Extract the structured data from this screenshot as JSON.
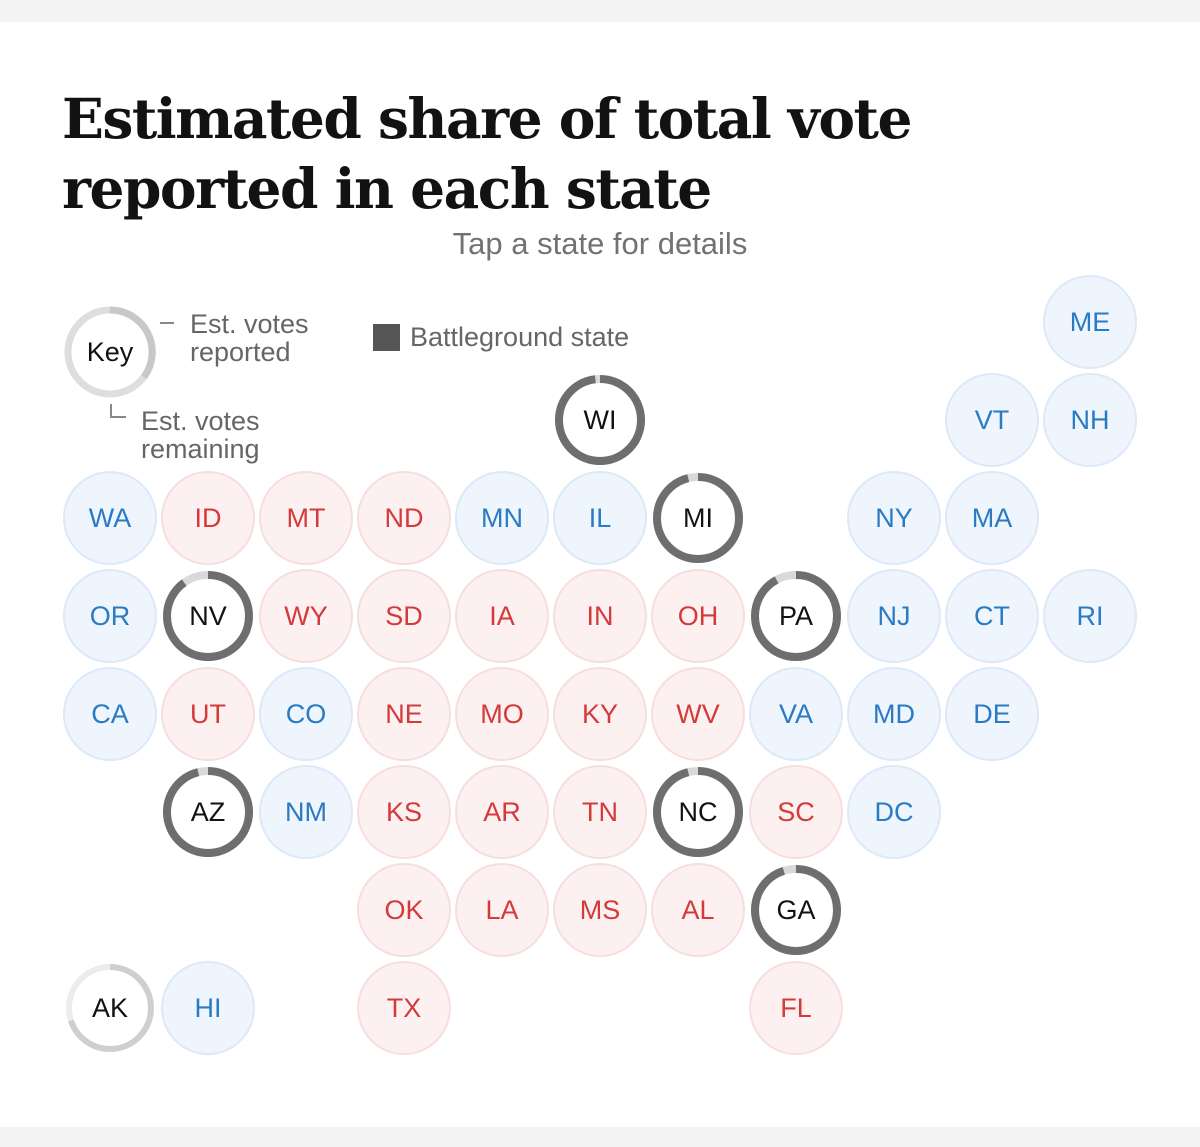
{
  "header": {
    "title": "Estimated share of total vote reported in each state",
    "subtitle": "Tap a state for details"
  },
  "legend": {
    "key_label": "Key",
    "reported_label": "Est. votes reported",
    "remaining_label": "Est. votes remaining",
    "battleground_label": "Battleground state"
  },
  "colors": {
    "dem_text": "#2a7ac4",
    "rep_text": "#d33a3a",
    "battleground_ring": "#6e6e6e",
    "remaining_ring": "#d9d9d9"
  },
  "states": [
    {
      "abbr": "ME",
      "party": "dem",
      "row": 0,
      "col": 10
    },
    {
      "abbr": "WI",
      "party": "battle",
      "row": 1,
      "col": 5,
      "reported": 0.98
    },
    {
      "abbr": "VT",
      "party": "dem",
      "row": 1,
      "col": 9
    },
    {
      "abbr": "NH",
      "party": "dem",
      "row": 1,
      "col": 10
    },
    {
      "abbr": "WA",
      "party": "dem",
      "row": 2,
      "col": 0
    },
    {
      "abbr": "ID",
      "party": "rep",
      "row": 2,
      "col": 1
    },
    {
      "abbr": "MT",
      "party": "rep",
      "row": 2,
      "col": 2
    },
    {
      "abbr": "ND",
      "party": "rep",
      "row": 2,
      "col": 3
    },
    {
      "abbr": "MN",
      "party": "dem",
      "row": 2,
      "col": 4
    },
    {
      "abbr": "IL",
      "party": "dem",
      "row": 2,
      "col": 5
    },
    {
      "abbr": "MI",
      "party": "battle",
      "row": 2,
      "col": 6,
      "reported": 0.96
    },
    {
      "abbr": "NY",
      "party": "dem",
      "row": 2,
      "col": 8
    },
    {
      "abbr": "MA",
      "party": "dem",
      "row": 2,
      "col": 9
    },
    {
      "abbr": "OR",
      "party": "dem",
      "row": 3,
      "col": 0
    },
    {
      "abbr": "NV",
      "party": "battle",
      "row": 3,
      "col": 1,
      "reported": 0.9
    },
    {
      "abbr": "WY",
      "party": "rep",
      "row": 3,
      "col": 2
    },
    {
      "abbr": "SD",
      "party": "rep",
      "row": 3,
      "col": 3
    },
    {
      "abbr": "IA",
      "party": "rep",
      "row": 3,
      "col": 4
    },
    {
      "abbr": "IN",
      "party": "rep",
      "row": 3,
      "col": 5
    },
    {
      "abbr": "OH",
      "party": "rep",
      "row": 3,
      "col": 6
    },
    {
      "abbr": "PA",
      "party": "battle",
      "row": 3,
      "col": 7,
      "reported": 0.92
    },
    {
      "abbr": "NJ",
      "party": "dem",
      "row": 3,
      "col": 8
    },
    {
      "abbr": "CT",
      "party": "dem",
      "row": 3,
      "col": 9
    },
    {
      "abbr": "RI",
      "party": "dem",
      "row": 3,
      "col": 10
    },
    {
      "abbr": "CA",
      "party": "dem",
      "row": 4,
      "col": 0
    },
    {
      "abbr": "UT",
      "party": "rep",
      "row": 4,
      "col": 1
    },
    {
      "abbr": "CO",
      "party": "dem",
      "row": 4,
      "col": 2
    },
    {
      "abbr": "NE",
      "party": "rep",
      "row": 4,
      "col": 3
    },
    {
      "abbr": "MO",
      "party": "rep",
      "row": 4,
      "col": 4
    },
    {
      "abbr": "KY",
      "party": "rep",
      "row": 4,
      "col": 5
    },
    {
      "abbr": "WV",
      "party": "rep",
      "row": 4,
      "col": 6
    },
    {
      "abbr": "VA",
      "party": "dem",
      "row": 4,
      "col": 7
    },
    {
      "abbr": "MD",
      "party": "dem",
      "row": 4,
      "col": 8
    },
    {
      "abbr": "DE",
      "party": "dem",
      "row": 4,
      "col": 9
    },
    {
      "abbr": "AZ",
      "party": "battle",
      "row": 5,
      "col": 1,
      "reported": 0.96
    },
    {
      "abbr": "NM",
      "party": "dem",
      "row": 5,
      "col": 2
    },
    {
      "abbr": "KS",
      "party": "rep",
      "row": 5,
      "col": 3
    },
    {
      "abbr": "AR",
      "party": "rep",
      "row": 5,
      "col": 4
    },
    {
      "abbr": "TN",
      "party": "rep",
      "row": 5,
      "col": 5
    },
    {
      "abbr": "NC",
      "party": "battle",
      "row": 5,
      "col": 6,
      "reported": 0.96
    },
    {
      "abbr": "SC",
      "party": "rep",
      "row": 5,
      "col": 7
    },
    {
      "abbr": "DC",
      "party": "dem",
      "row": 5,
      "col": 8
    },
    {
      "abbr": "OK",
      "party": "rep",
      "row": 6,
      "col": 3
    },
    {
      "abbr": "LA",
      "party": "rep",
      "row": 6,
      "col": 4
    },
    {
      "abbr": "MS",
      "party": "rep",
      "row": 6,
      "col": 5
    },
    {
      "abbr": "AL",
      "party": "rep",
      "row": 6,
      "col": 6
    },
    {
      "abbr": "GA",
      "party": "battle",
      "row": 6,
      "col": 7,
      "reported": 0.95
    },
    {
      "abbr": "AK",
      "party": "other",
      "row": 7,
      "col": 0,
      "reported": 0.7
    },
    {
      "abbr": "HI",
      "party": "dem",
      "row": 7,
      "col": 1
    },
    {
      "abbr": "TX",
      "party": "rep",
      "row": 7,
      "col": 3
    },
    {
      "abbr": "FL",
      "party": "rep",
      "row": 7,
      "col": 7
    }
  ]
}
